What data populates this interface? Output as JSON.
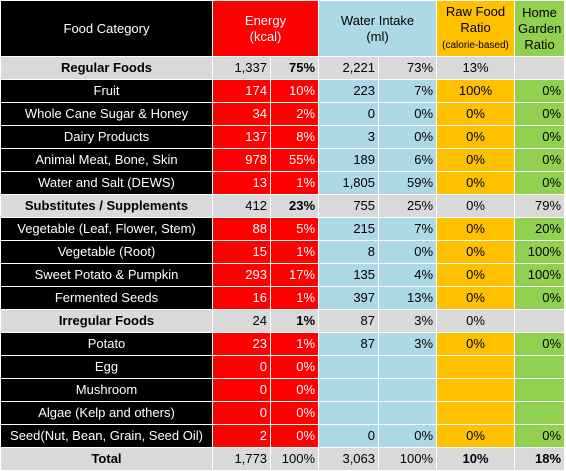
{
  "header": {
    "food_category": "Food Category",
    "energy": "Energy",
    "energy_unit": "(kcal)",
    "water": "Water Intake",
    "water_unit": "(ml)",
    "raw_food": "Raw Food Ratio",
    "raw_food_note": "(calorie-based)",
    "home_garden": "Home Garden Ratio"
  },
  "rows": [
    {
      "name": "Regular Foods",
      "group": true,
      "kcal": "1,337",
      "kcal_pct": "75%",
      "ml": "2,221",
      "ml_pct": "73%",
      "raw": "13%",
      "home": ""
    },
    {
      "name": "Fruit",
      "group": false,
      "kcal": "174",
      "kcal_pct": "10%",
      "ml": "223",
      "ml_pct": "7%",
      "raw": "100%",
      "home": "0%"
    },
    {
      "name": "Whole Cane Sugar & Honey",
      "group": false,
      "kcal": "34",
      "kcal_pct": "2%",
      "ml": "0",
      "ml_pct": "0%",
      "raw": "0%",
      "home": "0%"
    },
    {
      "name": "Dairy Products",
      "group": false,
      "kcal": "137",
      "kcal_pct": "8%",
      "ml": "3",
      "ml_pct": "0%",
      "raw": "0%",
      "home": "0%"
    },
    {
      "name": "Animal Meat, Bone, Skin",
      "group": false,
      "kcal": "978",
      "kcal_pct": "55%",
      "ml": "189",
      "ml_pct": "6%",
      "raw": "0%",
      "home": "0%"
    },
    {
      "name": "Water and Salt (DEWS)",
      "group": false,
      "kcal": "13",
      "kcal_pct": "1%",
      "ml": "1,805",
      "ml_pct": "59%",
      "raw": "0%",
      "home": "0%"
    },
    {
      "name": "Substitutes / Supplements",
      "group": true,
      "kcal": "412",
      "kcal_pct": "23%",
      "ml": "755",
      "ml_pct": "25%",
      "raw": "0%",
      "home": "79%"
    },
    {
      "name": "Vegetable (Leaf, Flower, Stem)",
      "group": false,
      "kcal": "88",
      "kcal_pct": "5%",
      "ml": "215",
      "ml_pct": "7%",
      "raw": "0%",
      "home": "20%"
    },
    {
      "name": "Vegetable (Root)",
      "group": false,
      "kcal": "15",
      "kcal_pct": "1%",
      "ml": "8",
      "ml_pct": "0%",
      "raw": "0%",
      "home": "100%"
    },
    {
      "name": "Sweet Potato & Pumpkin",
      "group": false,
      "kcal": "293",
      "kcal_pct": "17%",
      "ml": "135",
      "ml_pct": "4%",
      "raw": "0%",
      "home": "100%"
    },
    {
      "name": "Fermented Seeds",
      "group": false,
      "kcal": "16",
      "kcal_pct": "1%",
      "ml": "397",
      "ml_pct": "13%",
      "raw": "0%",
      "home": "0%"
    },
    {
      "name": "Irregular Foods",
      "group": true,
      "kcal": "24",
      "kcal_pct": "1%",
      "ml": "87",
      "ml_pct": "3%",
      "raw": "0%",
      "home": ""
    },
    {
      "name": "Potato",
      "group": false,
      "kcal": "23",
      "kcal_pct": "1%",
      "ml": "87",
      "ml_pct": "3%",
      "raw": "0%",
      "home": "0%"
    },
    {
      "name": "Egg",
      "group": false,
      "kcal": "0",
      "kcal_pct": "0%",
      "ml": "",
      "ml_pct": "",
      "raw": "",
      "home": ""
    },
    {
      "name": "Mushroom",
      "group": false,
      "kcal": "0",
      "kcal_pct": "0%",
      "ml": "",
      "ml_pct": "",
      "raw": "",
      "home": ""
    },
    {
      "name": "Algae (Kelp and others)",
      "group": false,
      "kcal": "0",
      "kcal_pct": "0%",
      "ml": "",
      "ml_pct": "",
      "raw": "",
      "home": ""
    },
    {
      "name": "Seed(Nut, Bean, Grain, Seed Oil)",
      "group": false,
      "kcal": "2",
      "kcal_pct": "0%",
      "ml": "0",
      "ml_pct": "0%",
      "raw": "0%",
      "home": "0%"
    }
  ],
  "total": {
    "name": "Total",
    "kcal": "1,773",
    "kcal_pct": "100%",
    "ml": "3,063",
    "ml_pct": "100%",
    "raw": "10%",
    "home": "18%"
  },
  "colors": {
    "category": "#000000",
    "energy": "#ff0000",
    "water": "#add8e6",
    "raw": "#ffc000",
    "home": "#92d050",
    "group": "#d9d9d9"
  }
}
